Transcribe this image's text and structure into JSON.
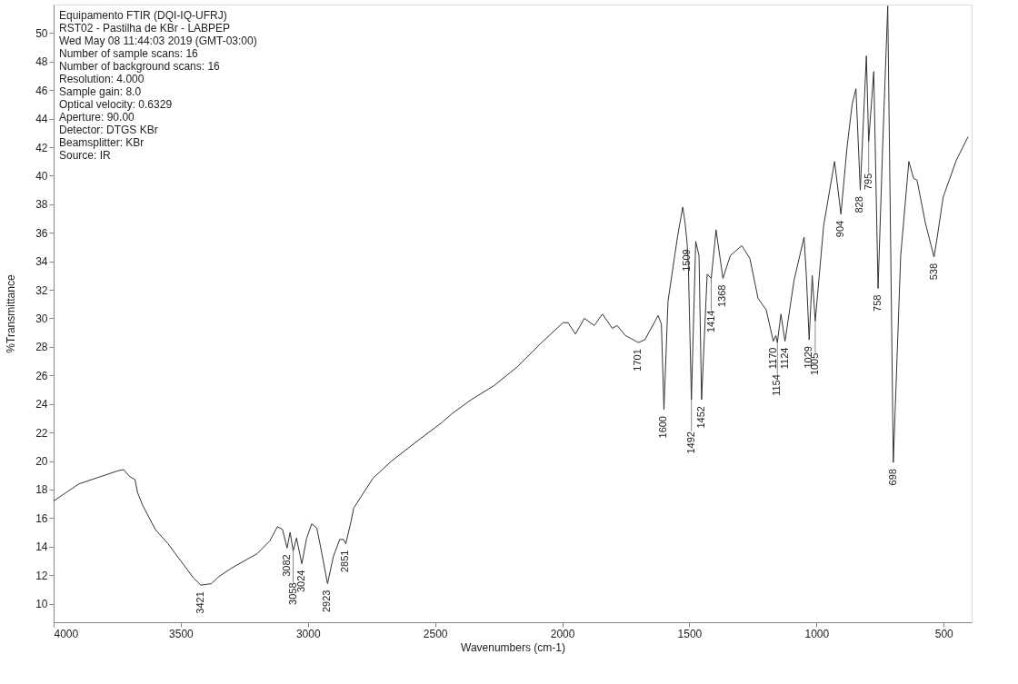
{
  "chart_data": {
    "type": "line",
    "xlabel": "Wavenumbers (cm-1)",
    "ylabel": "%Transmittance",
    "xlim": [
      4000,
      390
    ],
    "ylim": [
      8.7,
      52
    ],
    "xticks": [
      4000,
      3500,
      3000,
      2500,
      2000,
      1500,
      1000,
      500
    ],
    "yticks": [
      10,
      12,
      14,
      16,
      18,
      20,
      22,
      24,
      26,
      28,
      30,
      32,
      34,
      36,
      38,
      40,
      42,
      44,
      46,
      48,
      50
    ],
    "grid": false,
    "marker": "none",
    "line_style": "solid",
    "x": [
      4000,
      3950,
      3900,
      3850,
      3800,
      3750,
      3725,
      3700,
      3680,
      3670,
      3650,
      3600,
      3550,
      3500,
      3450,
      3421,
      3380,
      3350,
      3300,
      3250,
      3200,
      3150,
      3120,
      3100,
      3082,
      3070,
      3058,
      3045,
      3024,
      3005,
      2985,
      2965,
      2945,
      2923,
      2900,
      2875,
      2860,
      2851,
      2830,
      2820,
      2744,
      2671,
      2570,
      2473,
      2435,
      2358,
      2267,
      2177,
      2087,
      1997,
      1977,
      1948,
      1913,
      1874,
      1842,
      1803,
      1784,
      1752,
      1720,
      1701,
      1675,
      1623,
      1610,
      1600,
      1584,
      1546,
      1526,
      1517,
      1509,
      1504,
      1492,
      1475,
      1462,
      1452,
      1430,
      1414,
      1395,
      1368,
      1339,
      1294,
      1262,
      1230,
      1198,
      1170,
      1160,
      1154,
      1140,
      1124,
      1088,
      1049,
      1040,
      1029,
      1017,
      1005,
      972,
      929,
      904,
      880,
      860,
      845,
      828,
      804,
      795,
      775,
      758,
      740,
      720,
      698,
      669,
      637,
      618,
      605,
      572,
      538,
      527,
      502,
      450,
      405
    ],
    "series": [
      {
        "color": "#333333",
        "values": [
          17.2,
          17.8,
          18.4,
          18.7,
          19.0,
          19.3,
          19.4,
          18.9,
          18.7,
          17.8,
          16.9,
          15.2,
          14.2,
          13.0,
          11.8,
          11.3,
          11.4,
          11.9,
          12.5,
          13.0,
          13.5,
          14.4,
          15.4,
          15.2,
          13.9,
          15.0,
          13.7,
          14.6,
          12.8,
          14.6,
          15.6,
          15.3,
          13.5,
          11.4,
          13.3,
          14.5,
          14.5,
          14.2,
          15.8,
          16.7,
          18.8,
          20.0,
          21.4,
          22.7,
          23.3,
          24.3,
          25.3,
          26.6,
          28.2,
          29.7,
          29.7,
          28.9,
          30.0,
          29.5,
          30.3,
          29.3,
          29.5,
          28.8,
          28.5,
          28.3,
          28.5,
          30.2,
          29.6,
          23.6,
          31.2,
          35.8,
          37.8,
          36.7,
          35.3,
          33.7,
          24.3,
          35.4,
          34.4,
          24.3,
          33.1,
          32.8,
          36.2,
          32.8,
          34.4,
          35.1,
          34.2,
          31.4,
          30.6,
          28.4,
          28.8,
          28.3,
          30.3,
          28.4,
          32.7,
          35.7,
          33.0,
          28.5,
          33.0,
          29.8,
          36.5,
          41.0,
          37.3,
          42.0,
          45.0,
          46.1,
          39.0,
          48.4,
          42.4,
          47.3,
          32.1,
          42.0,
          51.9,
          19.9,
          34.4,
          41.0,
          39.8,
          39.7,
          36.7,
          34.3,
          35.5,
          38.5,
          41.1,
          42.7
        ]
      }
    ],
    "annotations": [
      "Equipamento FTIR (DQI-IQ-UFRJ)",
      "RST02 - Pastilha de KBr - LABPEP",
      "Wed May 08 11:44:03 2019 (GMT-03:00)",
      "Number of sample scans:  16",
      "Number of background scans:  16",
      "Resolution:  4.000",
      "Sample gain:  8.0",
      "Optical velocity:  0.6329",
      "Aperture:  90.00",
      "Detector:  DTGS KBr",
      "Beamsplitter:  KBr",
      "Source:  IR",
      {
        "text": "3421",
        "x": 3421,
        "y": 11.3
      },
      {
        "text": "3082",
        "x": 3082,
        "y": 13.9
      },
      {
        "text": "3058",
        "x": 3058,
        "y": 13.7
      },
      {
        "text": "3024",
        "x": 3024,
        "y": 12.8
      },
      {
        "text": "2923",
        "x": 2923,
        "y": 11.4
      },
      {
        "text": "2851",
        "x": 2851,
        "y": 14.2
      },
      {
        "text": "1701",
        "x": 1701,
        "y": 28.3
      },
      {
        "text": "1600",
        "x": 1600,
        "y": 23.6
      },
      {
        "text": "1509",
        "x": 1509,
        "y": 35.3
      },
      {
        "text": "1492",
        "x": 1492,
        "y": 24.3
      },
      {
        "text": "1452",
        "x": 1452,
        "y": 24.3
      },
      {
        "text": "1414",
        "x": 1414,
        "y": 32.8
      },
      {
        "text": "1368",
        "x": 1368,
        "y": 32.8
      },
      {
        "text": "1170",
        "x": 1170,
        "y": 28.4
      },
      {
        "text": "1154",
        "x": 1154,
        "y": 28.3
      },
      {
        "text": "1124",
        "x": 1124,
        "y": 28.4
      },
      {
        "text": "1029",
        "x": 1029,
        "y": 28.5
      },
      {
        "text": "1005",
        "x": 1005,
        "y": 29.8
      },
      {
        "text": "904",
        "x": 904,
        "y": 37.3
      },
      {
        "text": "828",
        "x": 828,
        "y": 39.0
      },
      {
        "text": "795",
        "x": 795,
        "y": 42.4
      },
      {
        "text": "758",
        "x": 758,
        "y": 32.1
      },
      {
        "text": "698",
        "x": 698,
        "y": 19.9
      },
      {
        "text": "538",
        "x": 538,
        "y": 34.3
      }
    ]
  }
}
